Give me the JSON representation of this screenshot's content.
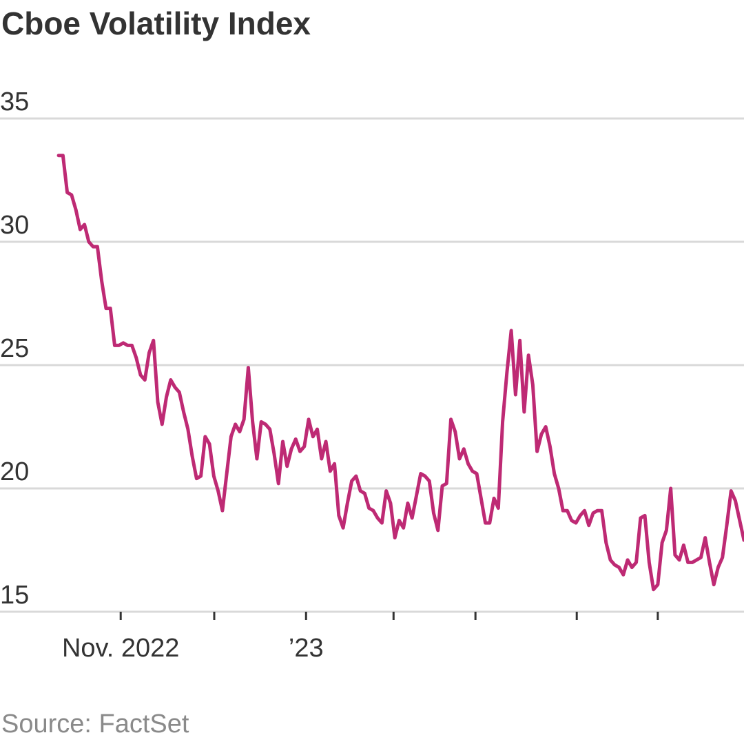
{
  "chart_data": {
    "type": "line",
    "title": "Cboe Volatility Index",
    "source": "Source: FactSet",
    "color": "#be2a74",
    "grid": true,
    "ylim": [
      15,
      35
    ],
    "yticks": [
      15,
      20,
      25,
      30,
      35
    ],
    "xlim": [
      -12.6,
      160
    ],
    "xticks": [
      {
        "value": 15.4,
        "label": "Nov. 2022"
      },
      {
        "value": 37.1
      },
      {
        "value": 58.4,
        "label": "’23"
      },
      {
        "value": 78.7
      },
      {
        "value": 97.7
      },
      {
        "value": 121.2
      },
      {
        "value": 140
      }
    ],
    "x": [
      1,
      2,
      3,
      4,
      5,
      6,
      7,
      8,
      9,
      10,
      11,
      12,
      13,
      14,
      15,
      16,
      17,
      18,
      19,
      20,
      21,
      22,
      23,
      24,
      25,
      26,
      27,
      28,
      29,
      30,
      31,
      32,
      33,
      34,
      35,
      36,
      37,
      38,
      39,
      40,
      41,
      42,
      43,
      44,
      45,
      46,
      47,
      48,
      49,
      50,
      51,
      52,
      53,
      54,
      55,
      56,
      57,
      58,
      59,
      60,
      61,
      62,
      63,
      64,
      65,
      66,
      67,
      68,
      69,
      70,
      71,
      72,
      73,
      74,
      75,
      76,
      77,
      78,
      79,
      80,
      81,
      82,
      83,
      84,
      85,
      86,
      87,
      88,
      89,
      90,
      91,
      92,
      93,
      94,
      95,
      96,
      97,
      98,
      99,
      100,
      101,
      102,
      103,
      104,
      105,
      106,
      107,
      108,
      109,
      110,
      111,
      112,
      113,
      114,
      115,
      116,
      117,
      118,
      119,
      120,
      121,
      122,
      123,
      124,
      125,
      126,
      127,
      128,
      129,
      130,
      131,
      132,
      133,
      134,
      135,
      136,
      137,
      138,
      139,
      140,
      141,
      142,
      143,
      144,
      145,
      146,
      147,
      148,
      149,
      150,
      151,
      152,
      153,
      154,
      155,
      156,
      157,
      158,
      159,
      160
    ],
    "series": [
      {
        "name": "Cboe Volatility Index",
        "color": "#be2a74",
        "values": [
          33.5,
          33.5,
          32.0,
          31.9,
          31.3,
          30.5,
          30.7,
          30.0,
          29.8,
          29.8,
          28.4,
          27.3,
          27.3,
          25.8,
          25.8,
          25.9,
          25.8,
          25.8,
          25.3,
          24.6,
          24.4,
          25.5,
          26.0,
          23.5,
          22.6,
          23.7,
          24.4,
          24.1,
          23.9,
          23.1,
          22.4,
          21.3,
          20.4,
          20.5,
          22.1,
          21.8,
          20.5,
          19.9,
          19.1,
          20.6,
          22.1,
          22.6,
          22.3,
          22.8,
          24.9,
          22.7,
          21.2,
          22.7,
          22.6,
          22.4,
          21.4,
          20.2,
          21.9,
          20.9,
          21.6,
          22.0,
          21.5,
          21.7,
          22.8,
          22.1,
          22.4,
          21.2,
          21.9,
          20.7,
          21.0,
          18.9,
          18.4,
          19.4,
          20.3,
          20.5,
          19.9,
          19.8,
          19.2,
          19.1,
          18.8,
          18.6,
          19.9,
          19.4,
          18.0,
          18.7,
          18.4,
          19.4,
          18.8,
          19.7,
          20.6,
          20.5,
          20.3,
          19.0,
          18.3,
          20.1,
          20.2,
          22.8,
          22.3,
          21.2,
          21.6,
          21.0,
          20.7,
          20.6,
          19.6,
          18.6,
          18.6,
          19.6,
          19.2,
          22.7,
          24.7,
          26.4,
          23.8,
          26.0,
          23.1,
          25.4,
          24.2,
          21.5,
          22.2,
          22.5,
          21.7,
          20.6,
          20.0,
          19.1,
          19.1,
          18.7,
          18.6,
          18.9,
          19.1,
          18.5,
          19.0,
          19.1,
          19.1,
          17.8,
          17.1,
          16.9,
          16.8,
          16.5,
          17.1,
          16.8,
          17.0,
          18.8,
          18.9,
          17.0,
          15.9,
          16.1,
          17.8,
          18.3,
          20.0,
          17.3,
          17.1,
          17.7,
          17.0,
          17.0,
          17.1,
          17.2,
          18.0,
          17.0,
          16.1,
          16.8,
          17.2,
          18.5,
          19.9,
          19.5,
          18.7,
          17.9
        ]
      }
    ]
  }
}
